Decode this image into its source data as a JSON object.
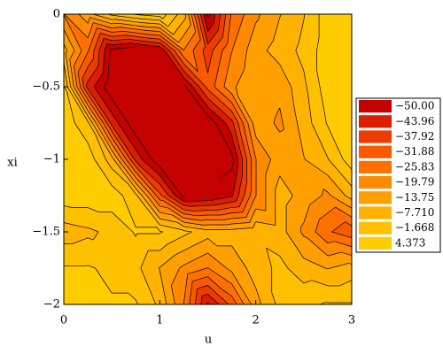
{
  "chart_data": {
    "type": "contour",
    "xlabel": "u",
    "ylabel": "xi",
    "x": [
      0,
      0.25,
      0.5,
      0.75,
      1,
      1.25,
      1.5,
      1.75,
      2,
      2.25,
      2.5,
      2.75,
      3
    ],
    "y": [
      0,
      -0.25,
      -0.5,
      -0.75,
      -1,
      -1.25,
      -1.5,
      -1.75,
      -2
    ],
    "z": [
      [
        -20,
        -10,
        0,
        5,
        8,
        -5,
        -52,
        -25,
        -15,
        -8,
        -2,
        8,
        8
      ],
      [
        -5,
        -25,
        -52,
        -55,
        -50,
        -20,
        -35,
        -20,
        -10,
        -5,
        0,
        8,
        8
      ],
      [
        5,
        -40,
        -55,
        -55,
        -55,
        -52,
        -30,
        -15,
        -8,
        -12,
        -3,
        8,
        8
      ],
      [
        8,
        0,
        -40,
        -55,
        -55,
        -55,
        -55,
        -40,
        -10,
        -15,
        -5,
        5,
        8
      ],
      [
        8,
        8,
        -5,
        -40,
        -55,
        -55,
        -55,
        -52,
        -20,
        -10,
        -8,
        -2,
        8
      ],
      [
        8,
        8,
        8,
        0,
        -30,
        -52,
        -50,
        -45,
        -20,
        -5,
        -10,
        -15,
        -5
      ],
      [
        -5,
        -3,
        0,
        5,
        5,
        0,
        -5,
        -5,
        -3,
        -5,
        -15,
        -25,
        -30
      ],
      [
        5,
        5,
        3,
        0,
        -8,
        -15,
        -20,
        -12,
        -5,
        0,
        -5,
        -8,
        -5
      ],
      [
        5,
        5,
        5,
        5,
        -3,
        -20,
        -45,
        -30,
        -10,
        0,
        3,
        5,
        5
      ]
    ],
    "levels": [
      -50,
      -43.96,
      -37.92,
      -31.88,
      -25.83,
      -19.79,
      -13.75,
      -7.71,
      -1.668,
      4.373
    ],
    "level_labels": [
      "−50.00",
      "−43.96",
      "−37.92",
      "−31.88",
      "−25.83",
      "−19.79",
      "−13.75",
      "−7.710",
      "−1.668",
      "4.373"
    ],
    "colors": [
      "#c40000",
      "#dc1e00",
      "#ee3c00",
      "#f85a00",
      "#ff7000",
      "#ff8a00",
      "#ffa000",
      "#ffb200",
      "#ffc000",
      "#ffcc00"
    ],
    "xlim": [
      0,
      3
    ],
    "ylim": [
      -2,
      0
    ],
    "xticks": [
      0,
      1,
      2,
      3
    ],
    "yticks": [
      0,
      {
        "value": -0.5,
        "label": "−0.5"
      },
      {
        "value": -1,
        "label": "−1"
      },
      {
        "value": -1.5,
        "label": "−1.5"
      },
      {
        "value": -2,
        "label": "−2"
      }
    ]
  }
}
